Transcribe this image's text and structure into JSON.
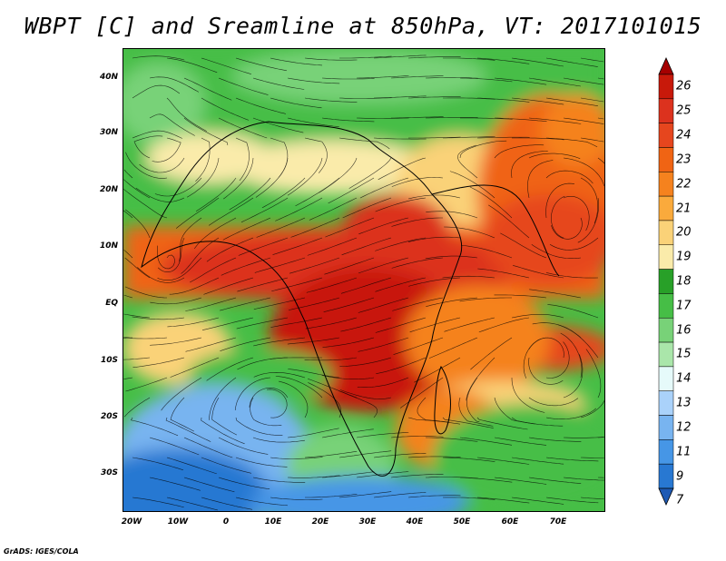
{
  "title": "WBPT [C] and Sreamline at 850hPa, VT: 2017101015",
  "footer": "GrADS: IGES/COLA",
  "lat_ticks": [
    "40N",
    "30N",
    "20N",
    "10N",
    "EQ",
    "10S",
    "20S",
    "30S"
  ],
  "lon_ticks": [
    "20W",
    "10W",
    "0",
    "10E",
    "20E",
    "30E",
    "40E",
    "50E",
    "60E",
    "70E"
  ],
  "colorbar": {
    "labels": [
      "26",
      "25",
      "24",
      "23",
      "22",
      "21",
      "20",
      "19",
      "18",
      "17",
      "16",
      "15",
      "14",
      "13",
      "12",
      "11",
      "9",
      "7"
    ],
    "colors": [
      "#a50000",
      "#c8190a",
      "#dc321e",
      "#e6461e",
      "#f06414",
      "#f5821e",
      "#faaa3c",
      "#fad278",
      "#faebaa",
      "#28a028",
      "#46be46",
      "#78d278",
      "#aae6aa",
      "#e6fafa",
      "#aad2fa",
      "#78b4f0",
      "#4696e6",
      "#2878d2",
      "#1e5ab4"
    ]
  },
  "map_colors": {
    "cold": "#2878d2",
    "cool": "#78b4f0",
    "mild": "#46be46",
    "warm": "#fad278",
    "hot": "#f06414",
    "veryhot": "#dc321e",
    "extreme": "#c8190a"
  }
}
